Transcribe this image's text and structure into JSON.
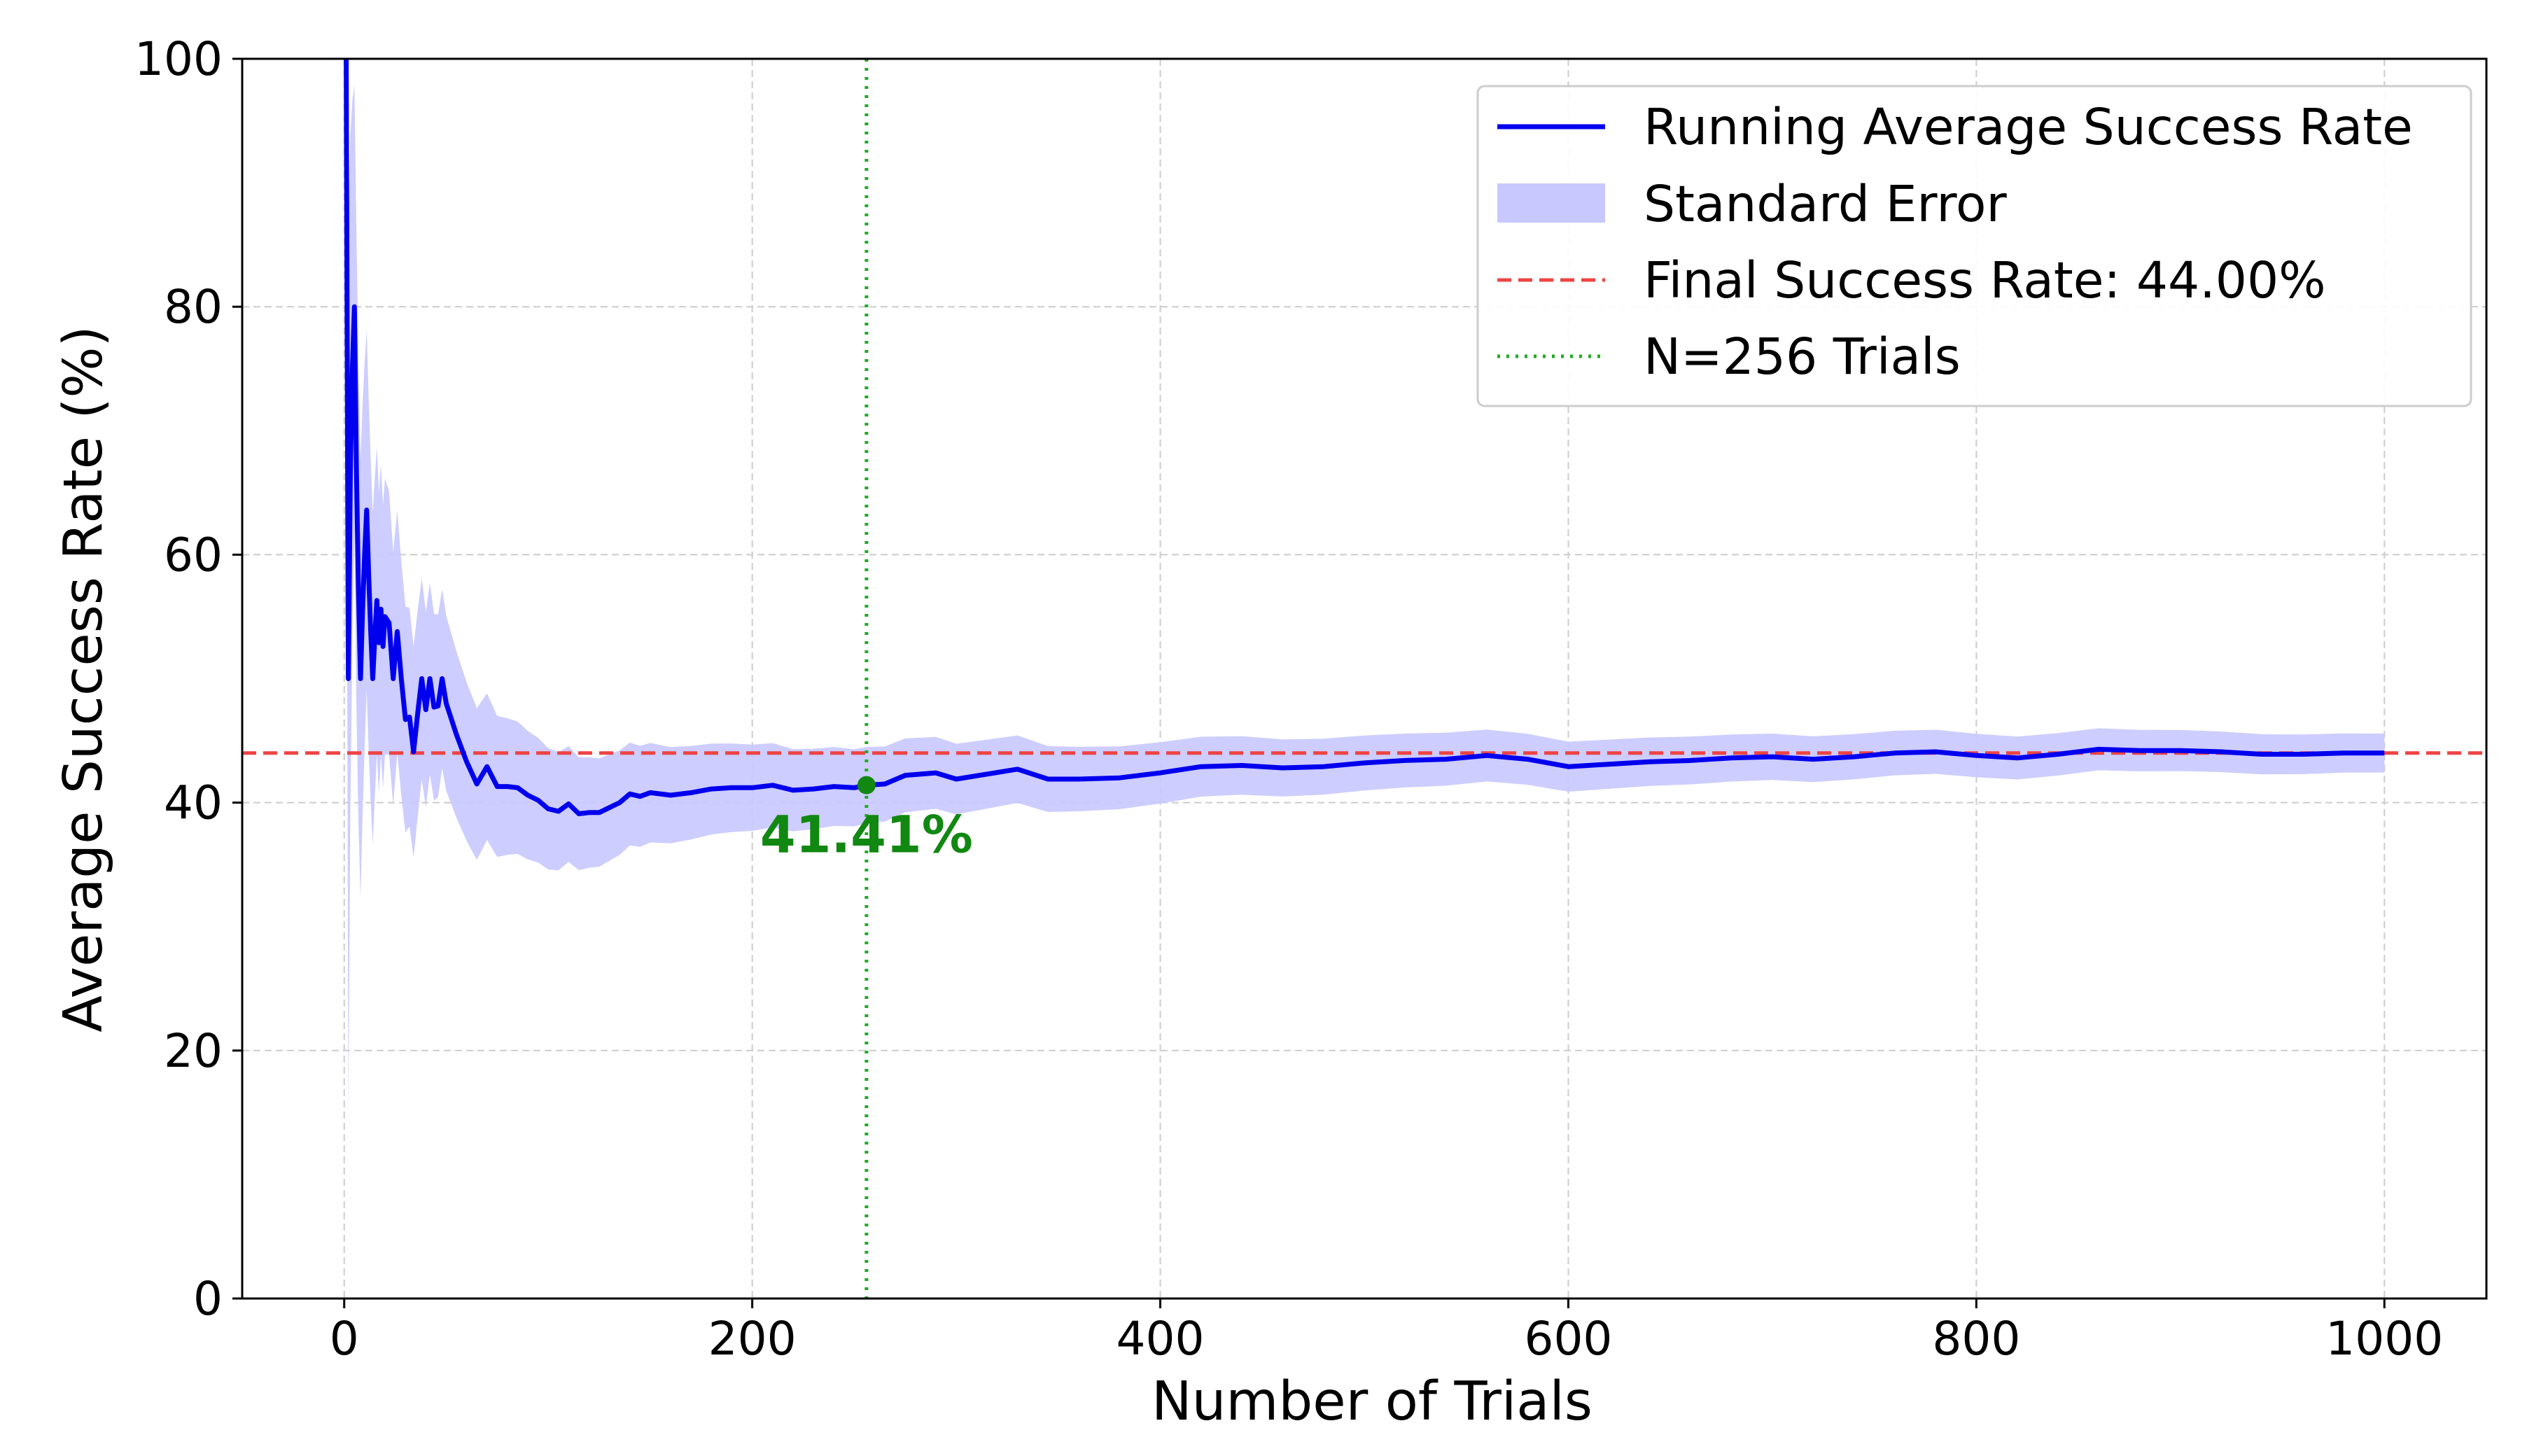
{
  "chart_data": {
    "type": "line",
    "title": "",
    "xlabel": "Number of Trials",
    "ylabel": "Average Success Rate (%)",
    "xlim": [
      -50,
      1050
    ],
    "ylim": [
      0,
      100
    ],
    "xticks": [
      0,
      200,
      400,
      600,
      800,
      1000
    ],
    "yticks": [
      0,
      20,
      40,
      60,
      80,
      100
    ],
    "grid": true,
    "legend_position": "top-right",
    "series": [
      {
        "name": "Running Average Success Rate",
        "color": "#0000ee",
        "x": [
          1,
          2,
          3,
          4,
          5,
          6,
          7,
          8,
          9,
          10,
          11,
          12,
          13,
          14,
          15,
          16,
          17,
          18,
          19,
          20,
          22,
          24,
          26,
          28,
          30,
          32,
          34,
          36,
          38,
          40,
          42,
          44,
          46,
          48,
          50,
          55,
          60,
          65,
          70,
          75,
          80,
          85,
          90,
          95,
          100,
          105,
          110,
          115,
          120,
          125,
          130,
          135,
          140,
          145,
          150,
          160,
          170,
          180,
          190,
          200,
          210,
          220,
          230,
          240,
          250,
          256,
          265,
          275,
          290,
          300,
          315,
          330,
          345,
          360,
          380,
          400,
          420,
          440,
          460,
          480,
          500,
          520,
          540,
          560,
          580,
          600,
          620,
          640,
          660,
          680,
          700,
          720,
          740,
          760,
          780,
          800,
          820,
          840,
          860,
          880,
          900,
          920,
          940,
          960,
          980,
          1000
        ],
        "y": [
          100,
          50,
          66.7,
          75,
          80,
          66.7,
          57.1,
          50,
          55.6,
          60,
          63.6,
          58.3,
          53.8,
          50,
          53.3,
          56.3,
          52.9,
          55.6,
          52.6,
          55,
          54.5,
          50,
          53.8,
          50,
          46.7,
          46.9,
          44.1,
          47.2,
          50,
          47.5,
          50,
          47.7,
          47.8,
          50,
          48,
          45.5,
          43.3,
          41.5,
          42.9,
          41.3,
          41.3,
          41.2,
          40.6,
          40.2,
          39.5,
          39.3,
          39.9,
          39.1,
          39.2,
          39.2,
          39.6,
          40,
          40.7,
          40.5,
          40.8,
          40.6,
          40.8,
          41.1,
          41.2,
          41.2,
          41.4,
          41.0,
          41.1,
          41.3,
          41.2,
          41.41,
          41.5,
          42.2,
          42.4,
          41.9,
          42.3,
          42.7,
          41.9,
          41.9,
          42.0,
          42.4,
          42.9,
          43.0,
          42.8,
          42.9,
          43.2,
          43.4,
          43.5,
          43.8,
          43.5,
          42.9,
          43.1,
          43.3,
          43.4,
          43.6,
          43.7,
          43.5,
          43.7,
          44.0,
          44.1,
          43.8,
          43.6,
          43.9,
          44.3,
          44.2,
          44.2,
          44.1,
          43.9,
          43.9,
          44.0,
          44.0
        ]
      },
      {
        "name": "Standard Error",
        "color": "#c8c8ff",
        "note": "band shown as running average ± standard error"
      },
      {
        "name": "Final Success Rate: 44.00%",
        "color": "#ee4444",
        "y_constant": 44.0
      },
      {
        "name": "N=256 Trials",
        "color": "#22aa22",
        "x_constant": 256
      }
    ],
    "annotation": {
      "text": "41.41%",
      "x": 256,
      "y": 41.41,
      "color": "#118811"
    }
  }
}
